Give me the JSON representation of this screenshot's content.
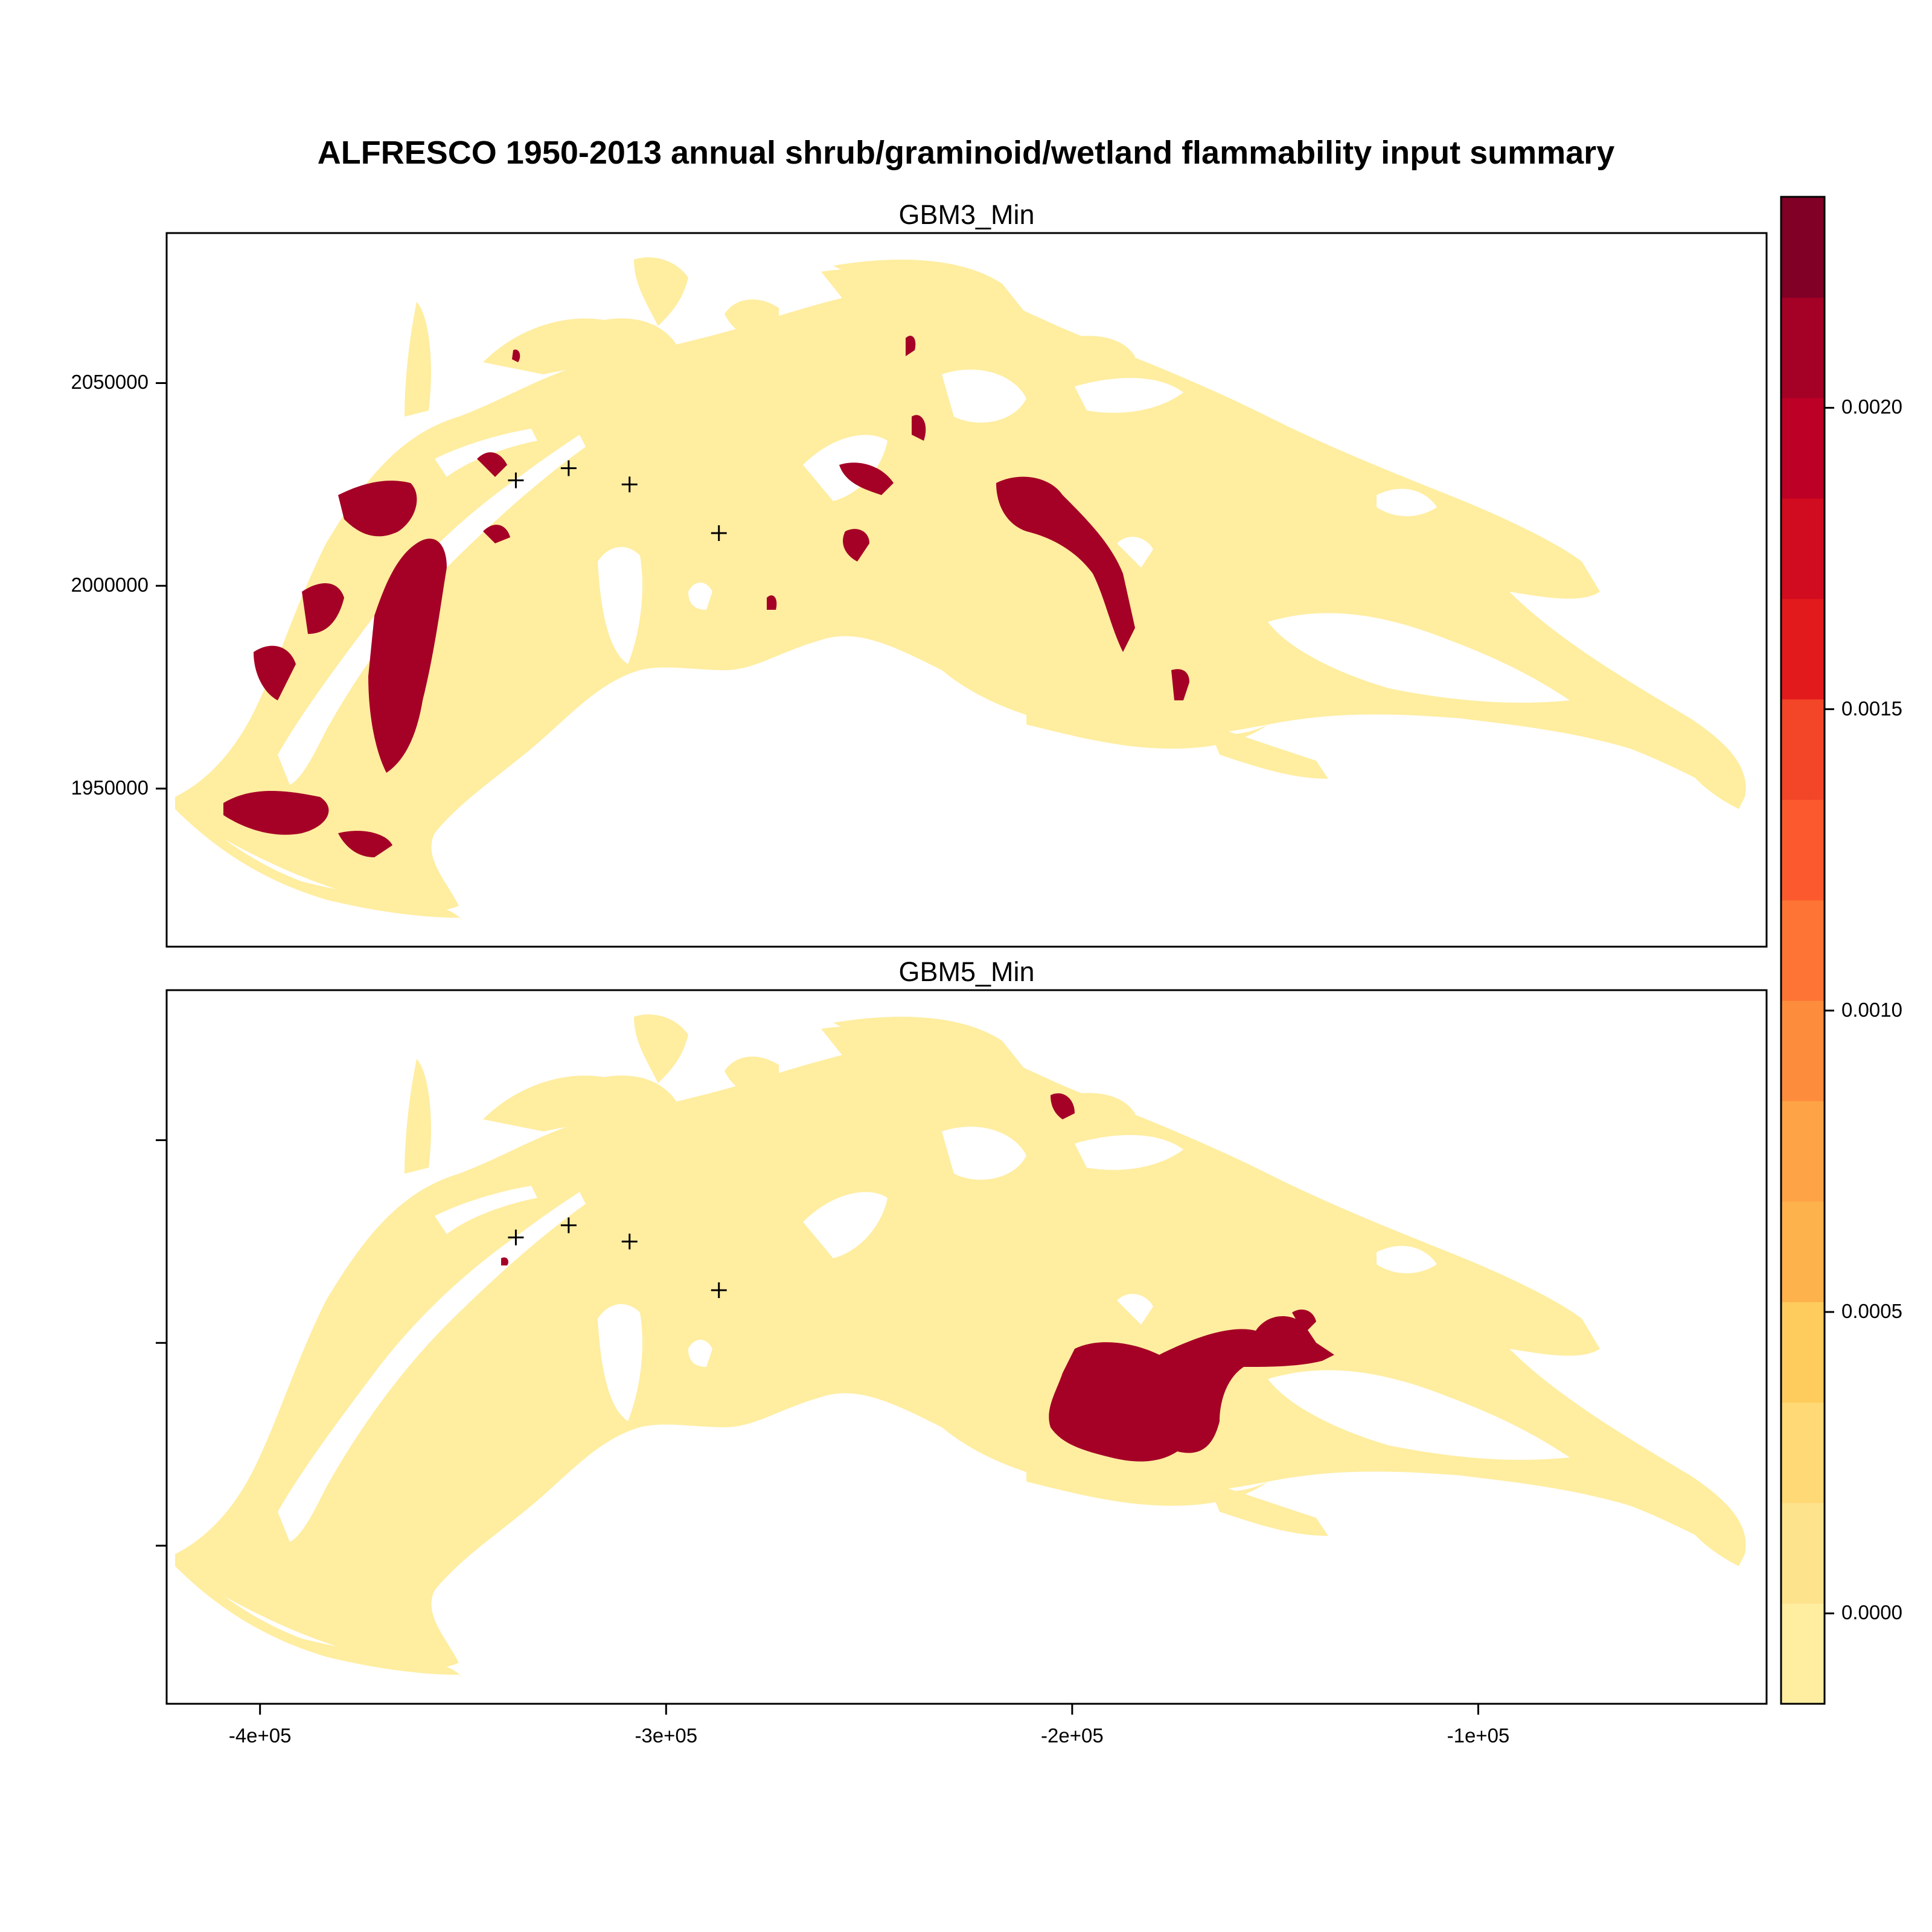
{
  "title": "ALFRESCO 1950-2013 annual shrub/graminoid/wetland flammability input summary",
  "panels": [
    {
      "label": "GBM3_Min"
    },
    {
      "label": "GBM5_Min"
    }
  ],
  "axes": {
    "x_ticks": [
      {
        "value": -400000,
        "label": "-4e+05"
      },
      {
        "value": -300000,
        "label": "-3e+05"
      },
      {
        "value": -200000,
        "label": "-2e+05"
      },
      {
        "value": -100000,
        "label": "-1e+05"
      }
    ],
    "y_ticks": [
      {
        "value": 2050000,
        "label": "2050000"
      },
      {
        "value": 2000000,
        "label": "2000000"
      },
      {
        "value": 1950000,
        "label": "1950000"
      }
    ],
    "xlim": [
      -423000,
      -29000
    ],
    "ylim": [
      1911000,
      2087000
    ]
  },
  "colorkey": {
    "min": -0.00015,
    "max": 0.00235,
    "tick_values": [
      0.0,
      0.0005,
      0.001,
      0.0015,
      0.002
    ],
    "tick_labels": [
      "0.0000",
      "0.0005",
      "0.0010",
      "0.0015",
      "0.0020"
    ],
    "colors": [
      "#FFEDA0",
      "#FEE38D",
      "#FED976",
      "#FECC5C",
      "#FEB24C",
      "#FEA446",
      "#FD8D3C",
      "#FD7435",
      "#FC5A2E",
      "#F34629",
      "#E31A1C",
      "#D10B20",
      "#BD0026",
      "#A50026",
      "#800026"
    ]
  },
  "colors": {
    "land": "#FFEDA0",
    "high": "#A50026",
    "border": "#000000"
  },
  "markers": [
    {
      "x": -337000,
      "y": 2026000
    },
    {
      "x": -324000,
      "y": 2029000
    },
    {
      "x": -309000,
      "y": 2025000
    },
    {
      "x": -287000,
      "y": 2013000
    }
  ]
}
